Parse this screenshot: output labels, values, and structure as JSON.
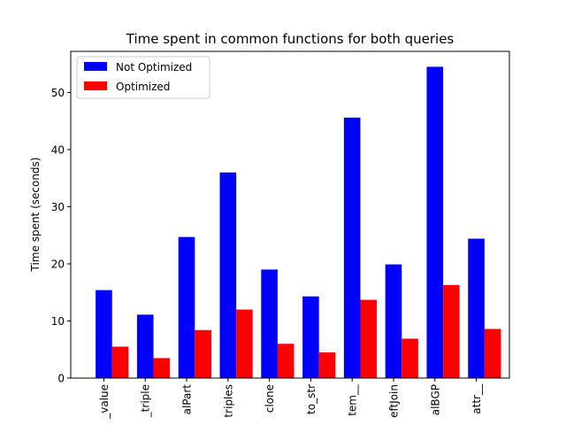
{
  "chart_data": {
    "type": "bar",
    "title": "Time spent in common functions for both queries",
    "xlabel": "",
    "ylabel": "Time spent (seconds)",
    "categories": [
      "_value",
      "_triple",
      "alPart",
      "triples",
      "clone",
      "to_str",
      "tem__",
      "eftJoin",
      "alBGP",
      "attr__"
    ],
    "series": [
      {
        "name": "Not Optimized",
        "color": "#0000ff",
        "values": [
          15.4,
          11.1,
          24.7,
          36.0,
          19.0,
          14.3,
          45.6,
          19.9,
          54.5,
          24.4
        ]
      },
      {
        "name": "Optimized",
        "color": "#ff0000",
        "values": [
          5.5,
          3.5,
          8.4,
          12.0,
          6.0,
          4.5,
          13.7,
          6.9,
          16.3,
          8.6
        ]
      }
    ],
    "ylim": [
      0,
      57.2
    ],
    "yticks": [
      0,
      10,
      20,
      30,
      40,
      50
    ],
    "grid": false,
    "legend_position": "top-left"
  }
}
